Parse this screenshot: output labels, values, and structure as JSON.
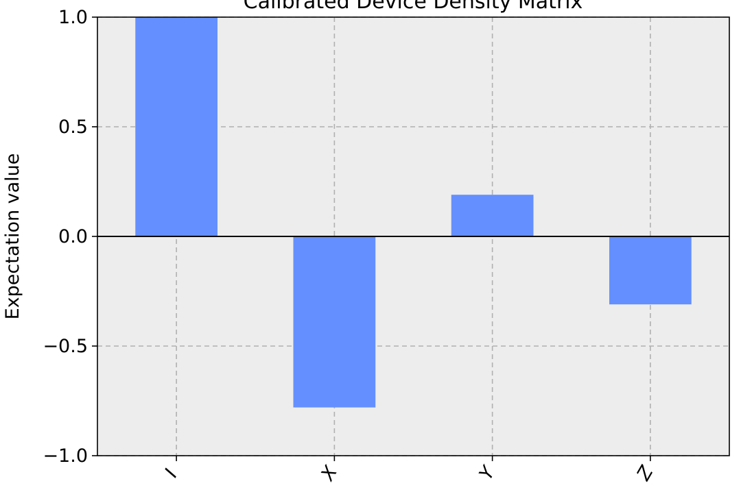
{
  "chart_data": {
    "type": "bar",
    "title": "Calibrated Device Density Matrix",
    "xlabel": "",
    "ylabel": "Expectation value",
    "categories": [
      "I",
      "X",
      "Y",
      "Z"
    ],
    "values": [
      1.0,
      -0.78,
      0.19,
      -0.31
    ],
    "ylim": [
      -1.0,
      1.0
    ],
    "yticks": [
      -1.0,
      -0.5,
      0.0,
      0.5,
      1.0
    ],
    "ytick_labels": [
      "−1.0",
      "−0.5",
      "0.0",
      "0.5",
      "1.0"
    ],
    "grid": true,
    "legend": "none",
    "colors": {
      "bar": "#648fff",
      "plot_background": "#ededed",
      "grid": "#b0b0b0"
    }
  }
}
